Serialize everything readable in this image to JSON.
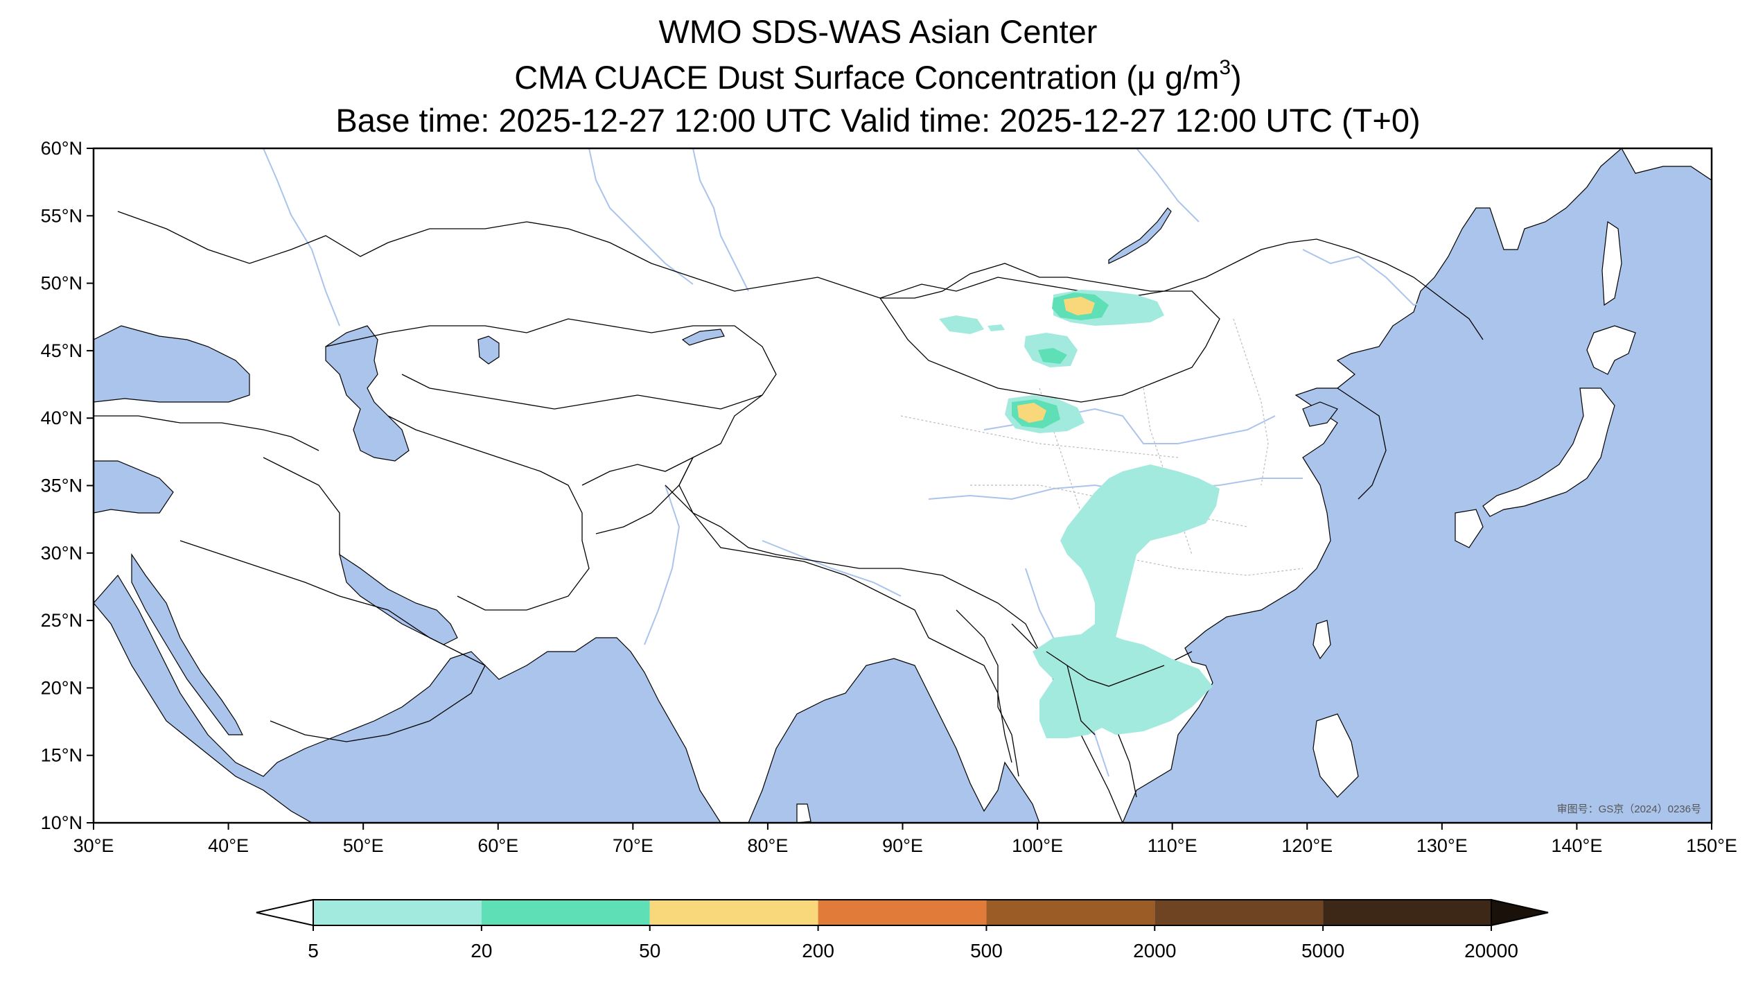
{
  "header": {
    "line1": "WMO SDS-WAS Asian Center",
    "line2_prefix": "CMA CUACE Dust Surface Concentration (",
    "line2_unit": "μ g/m",
    "line2_exp": "3",
    "line2_suffix": ")",
    "line3": "Base time: 2025-12-27 12:00 UTC Valid time: 2025-12-27 12:00 UTC (T+0)"
  },
  "map": {
    "lon_ticks": [
      "30°E",
      "40°E",
      "50°E",
      "60°E",
      "70°E",
      "80°E",
      "90°E",
      "100°E",
      "110°E",
      "120°E",
      "130°E",
      "140°E",
      "150°E"
    ],
    "lat_ticks": [
      "60°N",
      "55°N",
      "50°N",
      "45°N",
      "40°N",
      "35°N",
      "30°N",
      "25°N",
      "20°N",
      "15°N",
      "10°N"
    ],
    "approval_note": "审图号：GS京（2024）0236号",
    "colors": {
      "ocean": "#aac4ec",
      "land": "#ffffff",
      "river": "#aac4ec",
      "border": "#000000"
    }
  },
  "legend": {
    "labels": [
      "5",
      "20",
      "50",
      "200",
      "500",
      "2000",
      "5000",
      "20000"
    ],
    "colors": [
      "#a3eade",
      "#5fdfb6",
      "#f9d77b",
      "#e07b3a",
      "#9c5c26",
      "#6f4422",
      "#3d2716"
    ],
    "under_color": "#ffffff",
    "over_color": "#1a110a"
  }
}
